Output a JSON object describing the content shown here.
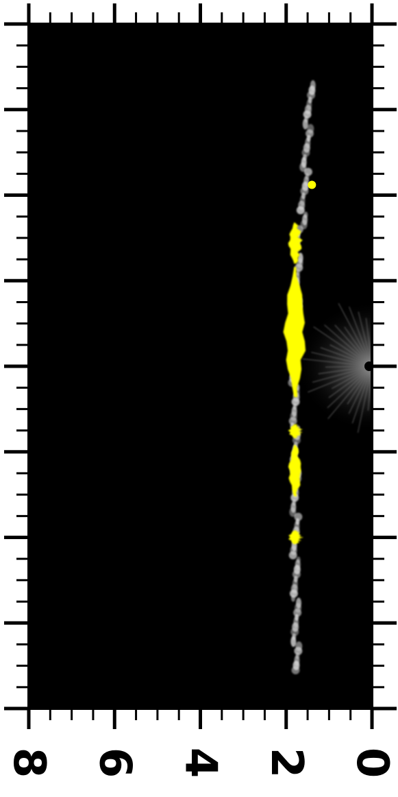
{
  "image": {
    "description_colors": {
      "background": "#000000",
      "frame": "#000000",
      "emission_bright": "#ffff00",
      "emission_faint": "#d8d8d8",
      "glow": "#7a7a7a"
    }
  },
  "axis": {
    "tick_labels": [
      "8",
      "6",
      "4",
      "2",
      "0"
    ],
    "tick_values": [
      8,
      6,
      4,
      2,
      0
    ],
    "range": [
      0,
      8
    ],
    "minor_per_major": 4
  },
  "side_axis": {
    "major_count": 8,
    "minor_per_major": 4
  },
  "filament": {
    "center_value": 1.8,
    "bright_segments": [
      {
        "from": 0.29,
        "to": 0.35
      },
      {
        "from": 0.355,
        "to": 0.545
      },
      {
        "from": 0.585,
        "to": 0.605
      },
      {
        "from": 0.615,
        "to": 0.69
      },
      {
        "from": 0.74,
        "to": 0.76
      }
    ],
    "faint_extent": [
      0.09,
      0.945
    ]
  }
}
